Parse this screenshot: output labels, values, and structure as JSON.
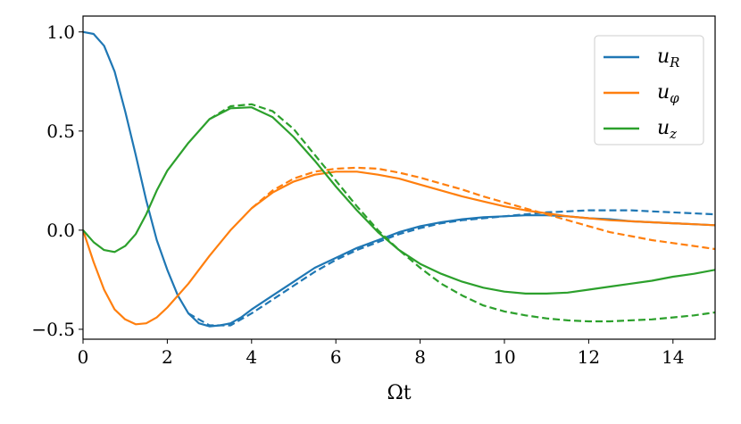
{
  "chart_data": {
    "type": "line",
    "xlabel": "Ωt",
    "ylabel": "",
    "title": "",
    "xlim": [
      0,
      15
    ],
    "ylim": [
      -0.55,
      1.08
    ],
    "xticks": [
      0,
      2,
      4,
      6,
      8,
      10,
      12,
      14
    ],
    "xtick_labels": [
      "0",
      "2",
      "4",
      "6",
      "8",
      "10",
      "12",
      "14"
    ],
    "yticks": [
      1.0,
      0.5,
      0.0,
      -0.5
    ],
    "ytick_labels": [
      "1.0",
      "0.5",
      "0.0",
      "−0.5"
    ],
    "grid": false,
    "legend_position": "top-right",
    "series": [
      {
        "name": "u_R",
        "legend_main": "u",
        "legend_sub": "R",
        "color": "#1f77b4",
        "style": "solid",
        "x": [
          0,
          0.25,
          0.5,
          0.75,
          1,
          1.25,
          1.5,
          1.75,
          2,
          2.25,
          2.5,
          2.75,
          3,
          3.25,
          3.5,
          3.75,
          4,
          4.5,
          5,
          5.5,
          6,
          6.5,
          7,
          7.5,
          8,
          8.5,
          9,
          9.5,
          10,
          10.5,
          11,
          11.5,
          12,
          12.5,
          13,
          13.5,
          14,
          14.5,
          15
        ],
        "y": [
          1.0,
          0.99,
          0.93,
          0.8,
          0.6,
          0.38,
          0.15,
          -0.05,
          -0.2,
          -0.33,
          -0.42,
          -0.47,
          -0.485,
          -0.48,
          -0.47,
          -0.44,
          -0.4,
          -0.33,
          -0.26,
          -0.19,
          -0.14,
          -0.09,
          -0.05,
          -0.01,
          0.02,
          0.04,
          0.055,
          0.065,
          0.07,
          0.075,
          0.075,
          0.07,
          0.06,
          0.055,
          0.045,
          0.04,
          0.035,
          0.03,
          0.025
        ]
      },
      {
        "name": "u_R (dashed)",
        "color": "#1f77b4",
        "style": "dashed",
        "x": [
          2.5,
          3,
          3.5,
          4,
          4.5,
          5,
          5.5,
          6,
          6.5,
          7,
          7.5,
          8,
          8.5,
          9,
          9.5,
          10,
          10.5,
          11,
          11.5,
          12,
          12.5,
          13,
          13.5,
          14,
          14.5,
          15
        ],
        "y": [
          -0.42,
          -0.48,
          -0.48,
          -0.42,
          -0.35,
          -0.28,
          -0.21,
          -0.15,
          -0.1,
          -0.06,
          -0.02,
          0.01,
          0.035,
          0.05,
          0.06,
          0.07,
          0.08,
          0.09,
          0.095,
          0.1,
          0.1,
          0.1,
          0.095,
          0.09,
          0.085,
          0.08
        ]
      },
      {
        "name": "u_φ",
        "legend_main": "u",
        "legend_sub": "φ",
        "color": "#ff7f0e",
        "style": "solid",
        "x": [
          0,
          0.25,
          0.5,
          0.75,
          1,
          1.25,
          1.5,
          1.75,
          2,
          2.5,
          3,
          3.5,
          4,
          4.5,
          5,
          5.5,
          6,
          6.5,
          7,
          7.5,
          8,
          8.5,
          9,
          9.5,
          10,
          10.5,
          11,
          11.5,
          12,
          12.5,
          13,
          13.5,
          14,
          14.5,
          15
        ],
        "y": [
          0,
          -0.16,
          -0.3,
          -0.4,
          -0.45,
          -0.475,
          -0.47,
          -0.44,
          -0.39,
          -0.27,
          -0.13,
          0.0,
          0.11,
          0.19,
          0.245,
          0.28,
          0.295,
          0.295,
          0.28,
          0.26,
          0.23,
          0.2,
          0.17,
          0.145,
          0.12,
          0.1,
          0.085,
          0.07,
          0.06,
          0.05,
          0.045,
          0.04,
          0.035,
          0.03,
          0.025
        ]
      },
      {
        "name": "u_φ (dashed)",
        "color": "#ff7f0e",
        "style": "dashed",
        "x": [
          4,
          4.5,
          5,
          5.5,
          6,
          6.5,
          7,
          7.5,
          8,
          8.5,
          9,
          9.5,
          10,
          10.5,
          11,
          11.5,
          12,
          12.5,
          13,
          13.5,
          14,
          14.5,
          15
        ],
        "y": [
          0.11,
          0.2,
          0.26,
          0.295,
          0.31,
          0.315,
          0.31,
          0.29,
          0.265,
          0.235,
          0.205,
          0.17,
          0.14,
          0.11,
          0.08,
          0.05,
          0.02,
          -0.01,
          -0.03,
          -0.05,
          -0.065,
          -0.08,
          -0.095
        ]
      },
      {
        "name": "u_z",
        "legend_main": "u",
        "legend_sub": "z",
        "color": "#2ca02c",
        "style": "solid",
        "x": [
          0,
          0.25,
          0.5,
          0.75,
          1,
          1.25,
          1.5,
          1.75,
          2,
          2.5,
          3,
          3.5,
          4,
          4.5,
          5,
          5.5,
          6,
          6.5,
          7,
          7.5,
          8,
          8.5,
          9,
          9.5,
          10,
          10.5,
          11,
          11.5,
          12,
          12.5,
          13,
          13.5,
          14,
          14.5,
          15
        ],
        "y": [
          0,
          -0.06,
          -0.1,
          -0.11,
          -0.08,
          -0.02,
          0.08,
          0.2,
          0.3,
          0.44,
          0.56,
          0.615,
          0.62,
          0.57,
          0.47,
          0.35,
          0.22,
          0.1,
          -0.01,
          -0.1,
          -0.17,
          -0.22,
          -0.26,
          -0.29,
          -0.31,
          -0.32,
          -0.32,
          -0.315,
          -0.3,
          -0.285,
          -0.27,
          -0.255,
          -0.235,
          -0.22,
          -0.2
        ]
      },
      {
        "name": "u_z (dashed)",
        "color": "#2ca02c",
        "style": "dashed",
        "x": [
          3,
          3.5,
          4,
          4.5,
          5,
          5.5,
          6,
          6.5,
          7,
          7.5,
          8,
          8.5,
          9,
          9.5,
          10,
          10.5,
          11,
          11.5,
          12,
          12.5,
          13,
          13.5,
          14,
          14.5,
          15
        ],
        "y": [
          0.56,
          0.625,
          0.635,
          0.6,
          0.51,
          0.38,
          0.25,
          0.12,
          0.0,
          -0.1,
          -0.19,
          -0.27,
          -0.33,
          -0.38,
          -0.41,
          -0.43,
          -0.445,
          -0.455,
          -0.46,
          -0.46,
          -0.455,
          -0.45,
          -0.44,
          -0.43,
          -0.415
        ]
      }
    ]
  }
}
